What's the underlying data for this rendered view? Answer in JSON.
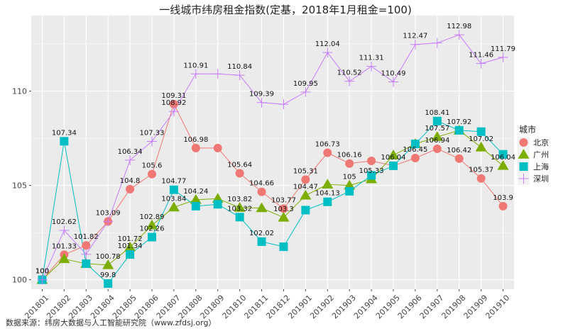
{
  "chart_data": {
    "type": "line",
    "title": "一线城市纬房租金指数(定基，2018年1月租金=100)",
    "xlabel": "",
    "ylabel": "",
    "ylim": [
      99.5,
      114
    ],
    "y_ticks": [
      100,
      105,
      110
    ],
    "grid": true,
    "legend_position": "right",
    "legend_title": "城市",
    "source": "数据来源：纬房大数据与人工智能研究院（www.zfdsj.org）",
    "categories": [
      "201801",
      "201802",
      "201803",
      "201804",
      "201805",
      "201806",
      "201807",
      "201808",
      "201809",
      "201810",
      "201811",
      "201812",
      "201901",
      "201902",
      "201903",
      "201904",
      "201905",
      "201906",
      "201907",
      "201908",
      "201909",
      "201910"
    ],
    "series": [
      {
        "name": "北京",
        "color": "#F07874",
        "marker": "circle",
        "values": [
          100,
          101.33,
          101.82,
          103.09,
          104.8,
          105.6,
          109.31,
          106.98,
          106.98,
          105.64,
          104.66,
          103.77,
          105.31,
          106.73,
          106.16,
          106.3,
          106.04,
          106.45,
          106.94,
          106.42,
          105.37,
          103.9
        ],
        "labels": [
          "100",
          "101.33",
          "101.82",
          "103.09",
          "104.8",
          "105.6",
          "109.31",
          "106.98",
          "",
          "105.64",
          "104.66",
          "103.77",
          "105.31",
          "106.73",
          "106.16",
          "",
          "106.04",
          "106.45",
          "106.94",
          "106.42",
          "105.37",
          "103.9"
        ]
      },
      {
        "name": "广州",
        "color": "#7CAE00",
        "marker": "triangle",
        "values": [
          100,
          101.1,
          100.85,
          100.78,
          101.72,
          102.89,
          103.84,
          104.24,
          104.3,
          103.82,
          103.8,
          103.3,
          104.47,
          105.05,
          105.0,
          105.33,
          106.6,
          107.2,
          107.57,
          107.92,
          107.02,
          106.04
        ],
        "labels": [
          "",
          "",
          "",
          "100.78",
          "101.72",
          "102.89",
          "103.84",
          "104.24",
          "",
          "103.82",
          "",
          "103.3",
          "104.47",
          "",
          "105",
          "105.33",
          "",
          "",
          "107.57",
          "",
          "107.02",
          "106.04"
        ]
      },
      {
        "name": "上海",
        "color": "#00BFC4",
        "marker": "square",
        "values": [
          100,
          107.34,
          100.85,
          99.8,
          101.34,
          102.26,
          104.77,
          103.9,
          104.0,
          103.32,
          102.02,
          101.75,
          103.69,
          104.13,
          104.69,
          105.53,
          106.04,
          107.2,
          108.41,
          107.92,
          107.85,
          106.65
        ],
        "labels": [
          "",
          "107.34",
          "",
          "99.8",
          "101.34",
          "102.26",
          "104.77",
          "",
          "",
          "103.32",
          "102.02",
          "",
          "",
          "104.13",
          "",
          "",
          "",
          "",
          "108.41",
          "107.92",
          "",
          ""
        ]
      },
      {
        "name": "深圳",
        "color": "#C77CFF",
        "marker": "plus",
        "values": [
          100,
          102.62,
          101.35,
          103.09,
          106.34,
          107.33,
          108.92,
          110.91,
          110.91,
          110.84,
          109.39,
          109.3,
          109.95,
          112.04,
          110.52,
          111.31,
          110.49,
          112.47,
          112.55,
          112.98,
          111.46,
          111.79
        ],
        "labels": [
          "",
          "102.62",
          "",
          "",
          "106.34",
          "107.33",
          "108.92",
          "110.91",
          "",
          "110.84",
          "109.39",
          "",
          "109.95",
          "112.04",
          "110.52",
          "111.31",
          "110.49",
          "112.47",
          "",
          "112.98",
          "111.46",
          "111.79"
        ]
      }
    ]
  }
}
